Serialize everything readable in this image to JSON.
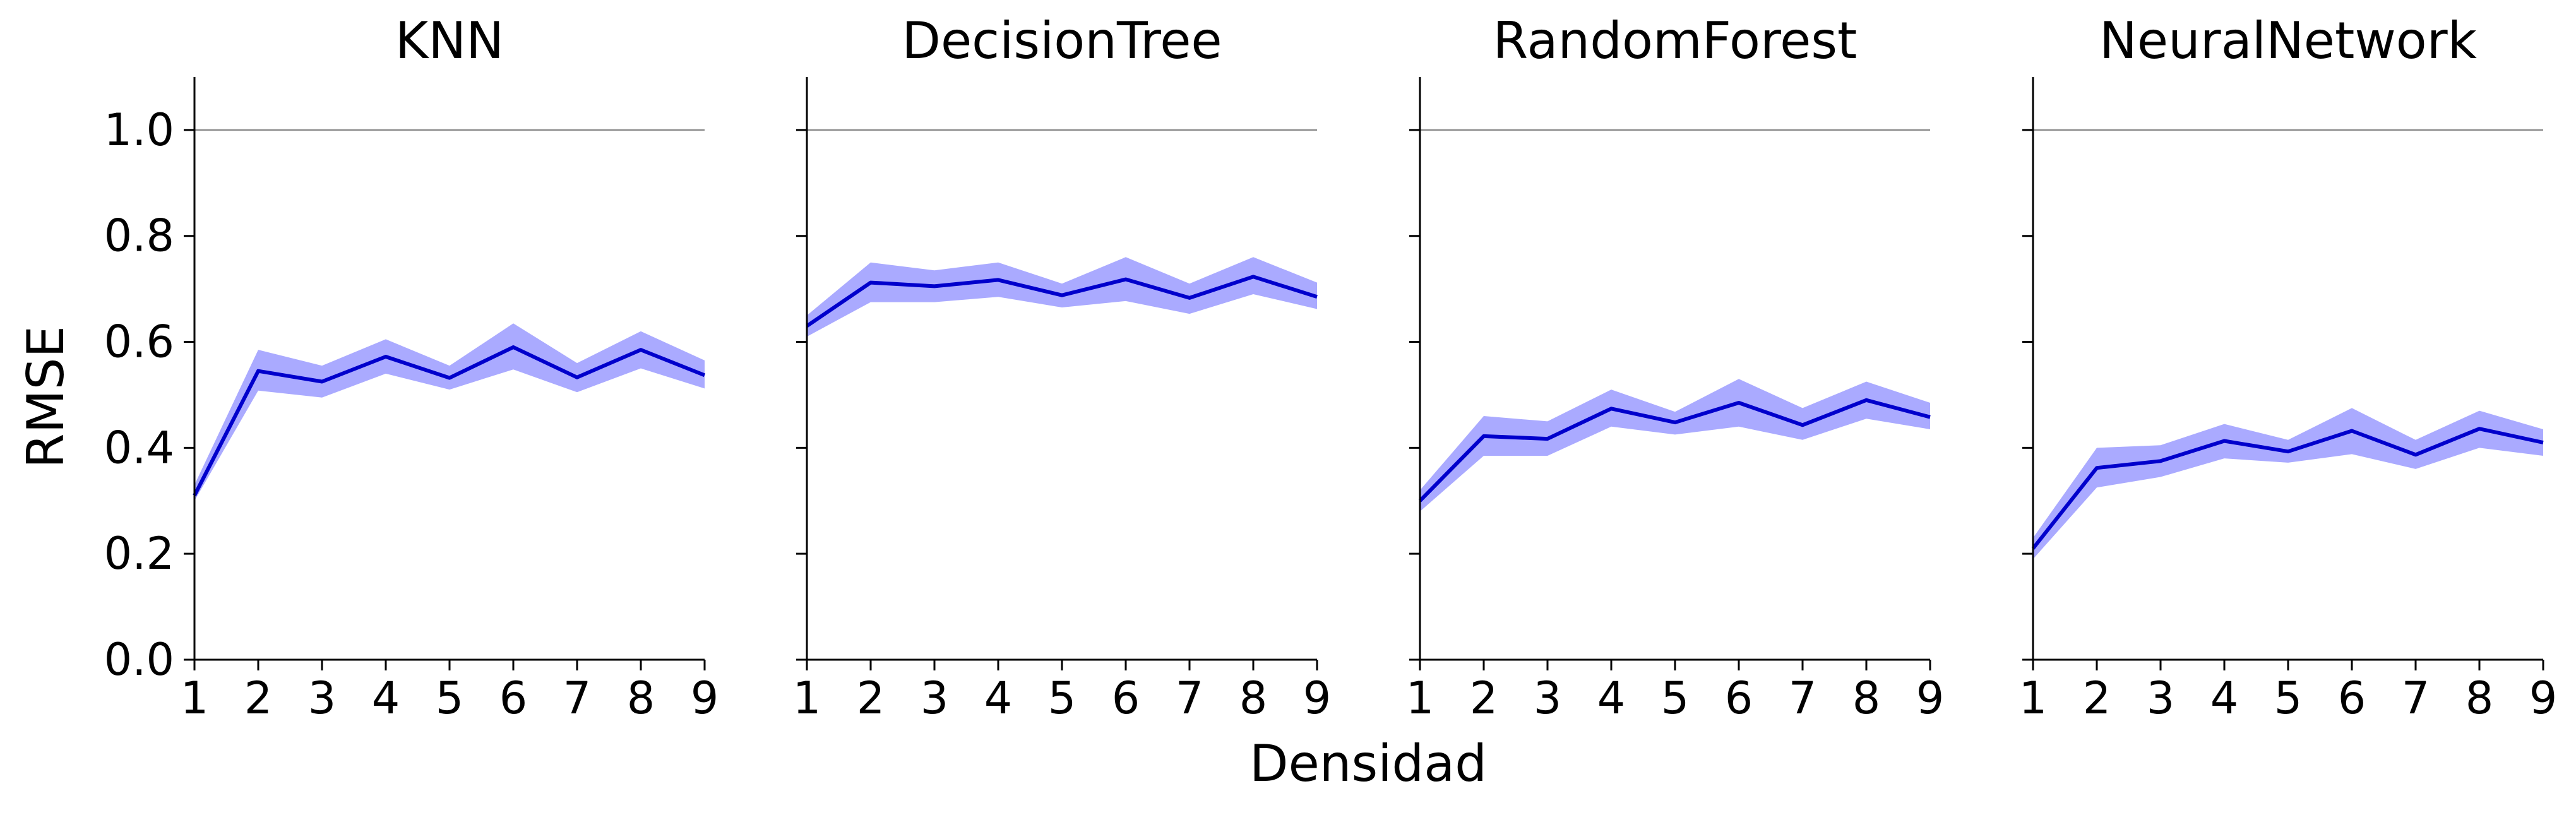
{
  "figure": {
    "xlabel": "Densidad",
    "ylabel": "RMSE"
  },
  "colors": {
    "line": "#0000cc",
    "band": "#aaaaff",
    "reference_line": "#8c8c8c",
    "axis": "#000000"
  },
  "chart_data": [
    {
      "type": "line",
      "title": "KNN",
      "xlabel": "Densidad",
      "ylabel": "RMSE",
      "xlim": [
        1,
        9
      ],
      "ylim": [
        0,
        1.1
      ],
      "x_ticks": [
        "1",
        "2",
        "3",
        "4",
        "5",
        "6",
        "7",
        "8",
        "9"
      ],
      "y_ticks": [
        "0.0",
        "0.2",
        "0.4",
        "0.6",
        "0.8",
        "1.0"
      ],
      "reference_line": 1.0,
      "grid": false,
      "x": [
        1,
        2,
        3,
        4,
        5,
        6,
        7,
        8,
        9
      ],
      "series": [
        {
          "values": [
            0.31,
            0.545,
            0.525,
            0.572,
            0.532,
            0.59,
            0.533,
            0.585,
            0.537
          ],
          "lower": [
            0.3,
            0.508,
            0.495,
            0.54,
            0.51,
            0.548,
            0.505,
            0.55,
            0.512
          ],
          "upper": [
            0.33,
            0.585,
            0.555,
            0.605,
            0.555,
            0.635,
            0.56,
            0.62,
            0.565
          ]
        }
      ]
    },
    {
      "type": "line",
      "title": "DecisionTree",
      "xlabel": "Densidad",
      "ylabel": "RMSE",
      "xlim": [
        1,
        9
      ],
      "ylim": [
        0,
        1.1
      ],
      "x_ticks": [
        "1",
        "2",
        "3",
        "4",
        "5",
        "6",
        "7",
        "8",
        "9"
      ],
      "y_ticks": [
        "0.0",
        "0.2",
        "0.4",
        "0.6",
        "0.8",
        "1.0"
      ],
      "reference_line": 1.0,
      "grid": false,
      "x": [
        1,
        2,
        3,
        4,
        5,
        6,
        7,
        8,
        9
      ],
      "series": [
        {
          "values": [
            0.63,
            0.712,
            0.705,
            0.717,
            0.688,
            0.718,
            0.683,
            0.723,
            0.685
          ],
          "lower": [
            0.61,
            0.675,
            0.675,
            0.685,
            0.665,
            0.677,
            0.653,
            0.69,
            0.662
          ],
          "upper": [
            0.65,
            0.75,
            0.735,
            0.75,
            0.71,
            0.76,
            0.71,
            0.76,
            0.712
          ]
        }
      ]
    },
    {
      "type": "line",
      "title": "RandomForest",
      "xlabel": "Densidad",
      "ylabel": "RMSE",
      "xlim": [
        1,
        9
      ],
      "ylim": [
        0,
        1.1
      ],
      "x_ticks": [
        "1",
        "2",
        "3",
        "4",
        "5",
        "6",
        "7",
        "8",
        "9"
      ],
      "y_ticks": [
        "0.0",
        "0.2",
        "0.4",
        "0.6",
        "0.8",
        "1.0"
      ],
      "reference_line": 1.0,
      "grid": false,
      "x": [
        1,
        2,
        3,
        4,
        5,
        6,
        7,
        8,
        9
      ],
      "series": [
        {
          "values": [
            0.3,
            0.422,
            0.417,
            0.474,
            0.448,
            0.485,
            0.443,
            0.49,
            0.458
          ],
          "lower": [
            0.28,
            0.385,
            0.385,
            0.44,
            0.425,
            0.44,
            0.415,
            0.455,
            0.435
          ],
          "upper": [
            0.32,
            0.46,
            0.45,
            0.51,
            0.468,
            0.53,
            0.475,
            0.525,
            0.485
          ]
        }
      ]
    },
    {
      "type": "line",
      "title": "NeuralNetwork",
      "xlabel": "Densidad",
      "ylabel": "RMSE",
      "xlim": [
        1,
        9
      ],
      "ylim": [
        0,
        1.1
      ],
      "x_ticks": [
        "1",
        "2",
        "3",
        "4",
        "5",
        "6",
        "7",
        "8",
        "9"
      ],
      "y_ticks": [
        "0.0",
        "0.2",
        "0.4",
        "0.6",
        "0.8",
        "1.0"
      ],
      "reference_line": 1.0,
      "grid": false,
      "x": [
        1,
        2,
        3,
        4,
        5,
        6,
        7,
        8,
        9
      ],
      "series": [
        {
          "values": [
            0.21,
            0.362,
            0.375,
            0.413,
            0.393,
            0.432,
            0.387,
            0.436,
            0.41
          ],
          "lower": [
            0.19,
            0.325,
            0.345,
            0.38,
            0.372,
            0.388,
            0.36,
            0.4,
            0.385
          ],
          "upper": [
            0.23,
            0.4,
            0.405,
            0.445,
            0.415,
            0.475,
            0.415,
            0.47,
            0.435
          ]
        }
      ]
    }
  ]
}
